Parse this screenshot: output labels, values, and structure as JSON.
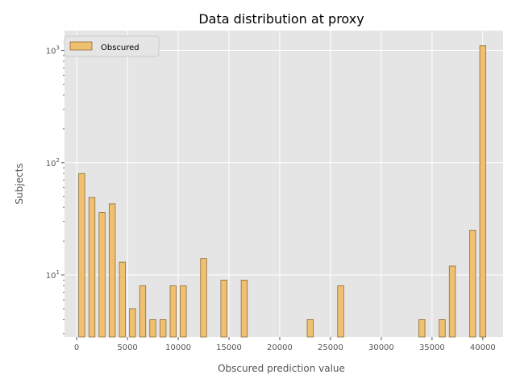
{
  "chart_data": {
    "type": "bar",
    "title": "Data distribution at proxy",
    "xlabel": "Obscured prediction value",
    "ylabel": "Subjects",
    "xlim": [
      -1200,
      42000
    ],
    "ylim": [
      2.8,
      1500
    ],
    "yscale": "log",
    "grid": true,
    "legend": {
      "position": "top-left",
      "entries": [
        "Obscured"
      ]
    },
    "x_ticks": [
      0,
      5000,
      10000,
      15000,
      20000,
      25000,
      30000,
      35000,
      40000
    ],
    "x_tick_labels": [
      "0",
      "5000",
      "10000",
      "15000",
      "20000",
      "25000",
      "30000",
      "35000",
      "40000"
    ],
    "y_ticks": [
      10,
      100,
      1000
    ],
    "y_tick_labels": [
      "10^1",
      "10^2",
      "10^3"
    ],
    "bar_width": 600,
    "series": [
      {
        "name": "Obscured",
        "color": "#f0c070",
        "edgecolor": "#8c6d3a",
        "x": [
          500,
          1500,
          2500,
          3500,
          4500,
          5500,
          6500,
          7500,
          8500,
          9500,
          10500,
          12500,
          14500,
          16500,
          23000,
          26000,
          34000,
          36000,
          37000,
          39000,
          40000
        ],
        "values": [
          80,
          49,
          36,
          43,
          13,
          5,
          8,
          4,
          4,
          8,
          8,
          14,
          9,
          9,
          4,
          8,
          4,
          4,
          12,
          25,
          1100
        ]
      }
    ]
  }
}
